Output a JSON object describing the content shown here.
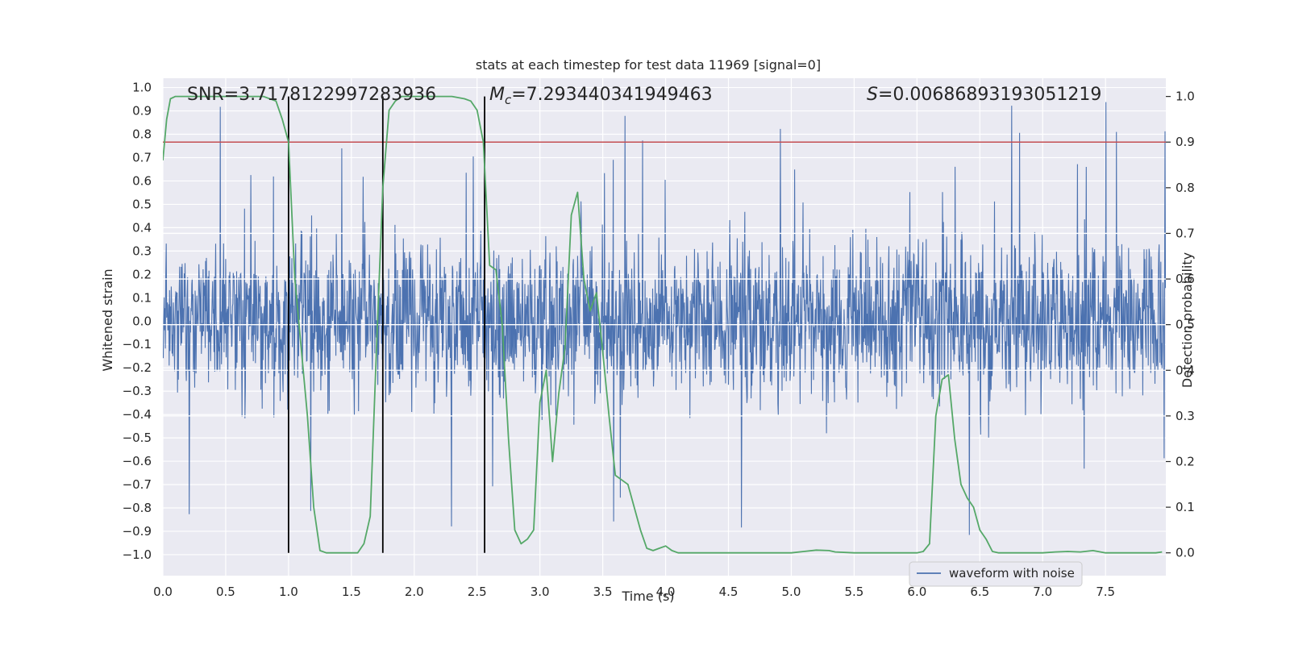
{
  "chart_data": {
    "type": "line",
    "title": "stats at each timestep for test data 11969 [signal=0]",
    "xlabel": "Time (s)",
    "ylabel_left": "Whitened strain",
    "ylabel_right": "Detection probability",
    "xlim": [
      0.0,
      7.98
    ],
    "ylim_left": [
      -1.09,
      1.04
    ],
    "ylim_right": [
      -0.05,
      1.04
    ],
    "x_ticks": [
      "0.0",
      "0.5",
      "1.0",
      "1.5",
      "2.0",
      "2.5",
      "3.0",
      "3.5",
      "4.0",
      "4.5",
      "5.0",
      "5.5",
      "6.0",
      "6.5",
      "7.0",
      "7.5"
    ],
    "x_tick_values": [
      0.0,
      0.5,
      1.0,
      1.5,
      2.0,
      2.5,
      3.0,
      3.5,
      4.0,
      4.5,
      5.0,
      5.5,
      6.0,
      6.5,
      7.0,
      7.5
    ],
    "y_left_ticks": [
      "1.0",
      "0.9",
      "0.8",
      "0.7",
      "0.6",
      "0.5",
      "0.4",
      "0.3",
      "0.2",
      "0.1",
      "0.0",
      "-0.1",
      "-0.2",
      "-0.3",
      "-0.4",
      "-0.5",
      "-0.6",
      "-0.7",
      "-0.8",
      "-0.9",
      "-1.0"
    ],
    "y_left_tick_values": [
      1.0,
      0.9,
      0.8,
      0.7,
      0.6,
      0.5,
      0.4,
      0.3,
      0.2,
      0.1,
      0.0,
      -0.1,
      -0.2,
      -0.3,
      -0.4,
      -0.5,
      -0.6,
      -0.7,
      -0.8,
      -0.9,
      -1.0
    ],
    "y_right_ticks": [
      "1.0",
      "0.9",
      "0.8",
      "0.7",
      "0.6",
      "0.5",
      "0.4",
      "0.3",
      "0.2",
      "0.1",
      "0.0"
    ],
    "y_right_tick_values": [
      1.0,
      0.9,
      0.8,
      0.7,
      0.6,
      0.5,
      0.4,
      0.3,
      0.2,
      0.1,
      0.0
    ],
    "annotations": {
      "snr": "SNR=3.7178122997283936",
      "mc_symbol": "M",
      "mc_sub": "c",
      "mc_value": "=7.293440341949463",
      "s_symbol": "S",
      "s_value": "=0.00686893193051219"
    },
    "legend": {
      "label": "waveform with noise",
      "placement": "lower-right"
    },
    "threshold": {
      "value": 0.9,
      "axis": "right",
      "color": "#c44e52"
    },
    "vertical_lines": [
      1.0,
      1.75,
      2.56
    ],
    "vertical_line_range_right": [
      0.0,
      1.0
    ],
    "series": [
      {
        "name": "waveform with noise",
        "axis": "left",
        "color": "#4c72b0",
        "style": "dense noise",
        "typical_amplitude": 0.3,
        "peak_amplitude": 0.95,
        "sample_rate_hz": 300,
        "seed": 11969
      },
      {
        "name": "Detection probability",
        "axis": "right",
        "color": "#55a868",
        "x": [
          0.0,
          0.03,
          0.06,
          0.1,
          0.15,
          0.2,
          0.3,
          0.4,
          0.5,
          0.6,
          0.7,
          0.8,
          0.9,
          0.95,
          1.0,
          1.05,
          1.1,
          1.15,
          1.2,
          1.25,
          1.3,
          1.35,
          1.4,
          1.45,
          1.5,
          1.55,
          1.6,
          1.65,
          1.7,
          1.75,
          1.8,
          1.85,
          1.9,
          2.0,
          2.1,
          2.2,
          2.3,
          2.4,
          2.45,
          2.5,
          2.55,
          2.6,
          2.65,
          2.7,
          2.75,
          2.8,
          2.85,
          2.9,
          2.95,
          3.0,
          3.05,
          3.1,
          3.15,
          3.2,
          3.25,
          3.3,
          3.35,
          3.4,
          3.45,
          3.5,
          3.55,
          3.6,
          3.7,
          3.8,
          3.85,
          3.9,
          3.95,
          4.0,
          4.05,
          4.1,
          4.2,
          4.3,
          4.4,
          4.6,
          4.8,
          5.0,
          5.1,
          5.2,
          5.3,
          5.35,
          5.5,
          5.7,
          5.9,
          6.0,
          6.05,
          6.1,
          6.15,
          6.2,
          6.25,
          6.3,
          6.35,
          6.4,
          6.45,
          6.5,
          6.55,
          6.6,
          6.65,
          6.7,
          6.8,
          7.0,
          7.1,
          7.2,
          7.3,
          7.4,
          7.5,
          7.7,
          7.9,
          7.95
        ],
        "y": [
          0.86,
          0.95,
          0.995,
          1.0,
          1.0,
          1.0,
          1.0,
          1.0,
          1.0,
          1.0,
          1.0,
          1.0,
          0.99,
          0.95,
          0.9,
          0.6,
          0.45,
          0.3,
          0.1,
          0.005,
          0.0,
          0.0,
          0.0,
          0.0,
          0.0,
          0.0,
          0.02,
          0.08,
          0.45,
          0.8,
          0.97,
          0.99,
          1.0,
          1.0,
          1.0,
          1.0,
          1.0,
          0.995,
          0.99,
          0.97,
          0.9,
          0.63,
          0.62,
          0.5,
          0.25,
          0.05,
          0.02,
          0.03,
          0.05,
          0.33,
          0.4,
          0.2,
          0.35,
          0.45,
          0.74,
          0.79,
          0.6,
          0.53,
          0.57,
          0.44,
          0.3,
          0.17,
          0.15,
          0.05,
          0.01,
          0.005,
          0.01,
          0.015,
          0.005,
          0.0,
          0.0,
          0.0,
          0.0,
          0.0,
          0.0,
          0.0,
          0.003,
          0.006,
          0.005,
          0.002,
          0.0,
          0.0,
          0.0,
          0.0,
          0.003,
          0.02,
          0.3,
          0.38,
          0.39,
          0.25,
          0.15,
          0.12,
          0.1,
          0.05,
          0.03,
          0.003,
          0.0,
          0.0,
          0.0,
          0.0,
          0.002,
          0.003,
          0.002,
          0.005,
          0.0,
          0.0,
          0.0,
          0.002
        ]
      }
    ]
  }
}
